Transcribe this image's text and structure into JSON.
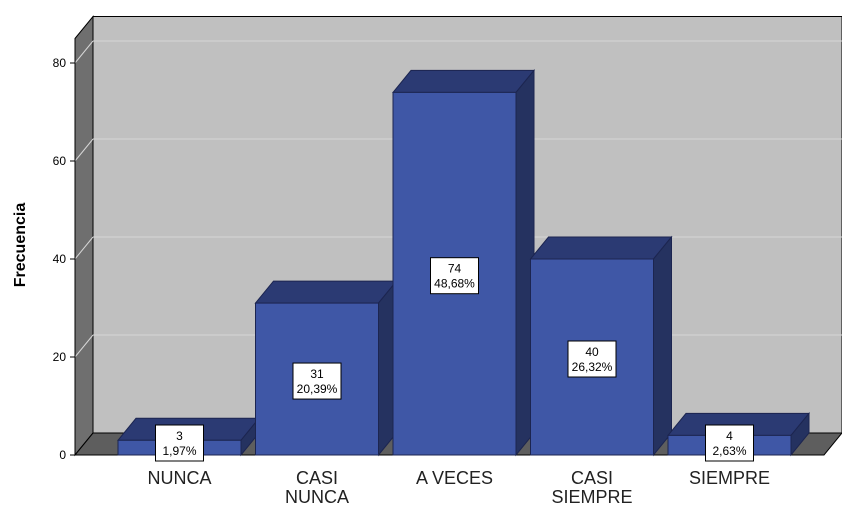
{
  "chart_data": {
    "type": "bar",
    "style": "3d",
    "ylabel": "Frecuencia",
    "xlabel": "",
    "ylim": [
      0,
      85
    ],
    "yticks": [
      0,
      20,
      40,
      60,
      80
    ],
    "grid": true,
    "categories": [
      {
        "lines": [
          "NUNCA"
        ]
      },
      {
        "lines": [
          "CASI",
          "NUNCA"
        ]
      },
      {
        "lines": [
          "A VECES"
        ]
      },
      {
        "lines": [
          "CASI",
          "SIEMPRE"
        ]
      },
      {
        "lines": [
          "SIEMPRE"
        ]
      }
    ],
    "values": [
      3,
      31,
      74,
      40,
      4
    ],
    "percent_labels": [
      "1,97%",
      "20,39%",
      "48,68%",
      "26,32%",
      "2,63%"
    ],
    "colors": {
      "bar_front": "#3f57a6",
      "bar_top": "#2b3a73",
      "bar_side": "#253260",
      "bar_edge": "#1c2550",
      "plot_back": "#c0c0c0",
      "plot_left": "#6f6f6f",
      "plot_floor": "#5e5e5e",
      "grid": "#d6d6d6"
    }
  }
}
